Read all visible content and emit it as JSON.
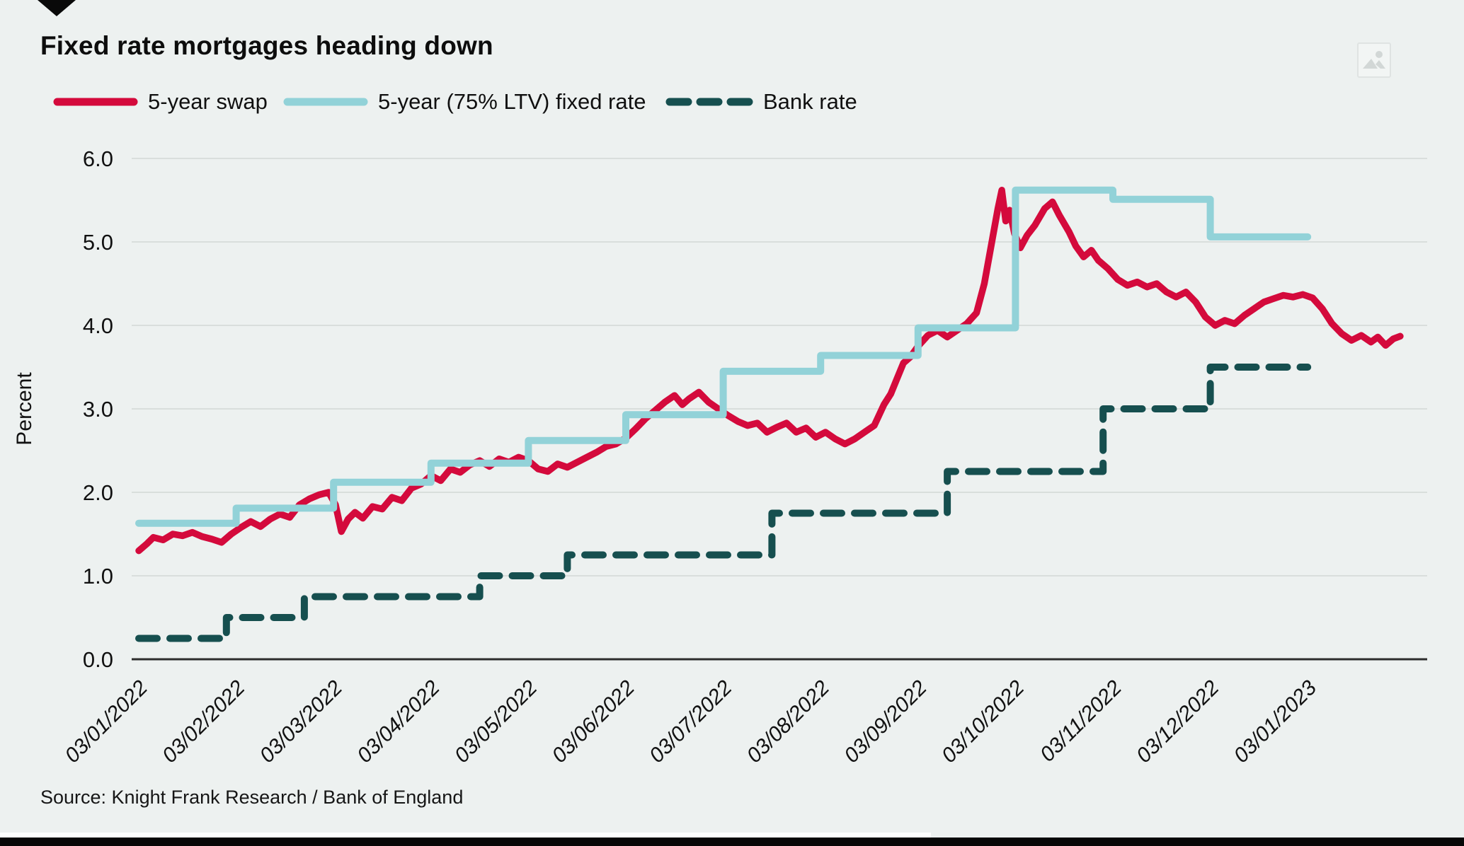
{
  "page": {
    "background": "#edf1f0"
  },
  "header": {
    "title": "Fixed rate mortgages heading down",
    "brand_icon": "down-triangle-icon",
    "corner_icon": "image-placeholder-icon"
  },
  "legend": [
    {
      "label": "5-year swap",
      "color": "#d40a3c",
      "style": "solid"
    },
    {
      "label": "5-year (75% LTV) fixed rate",
      "color": "#92d2d8",
      "style": "solid"
    },
    {
      "label": "Bank rate",
      "color": "#164f4f",
      "style": "dashed"
    }
  ],
  "chart_data": {
    "type": "line",
    "title": "Fixed rate mortgages heading down",
    "ylabel": "Percent",
    "ylim": [
      0.0,
      6.0
    ],
    "y_tick_labels": [
      "0.0",
      "1.0",
      "2.0",
      "3.0",
      "4.0",
      "5.0",
      "6.0"
    ],
    "x_tick_labels": [
      "03/01/2022",
      "03/02/2022",
      "03/03/2022",
      "03/04/2022",
      "03/05/2022",
      "03/06/2022",
      "03/07/2022",
      "03/08/2022",
      "03/09/2022",
      "03/10/2022",
      "03/11/2022",
      "03/12/2022",
      "03/01/2023"
    ],
    "grid": true,
    "legend_position": "top",
    "series": [
      {
        "name": "5-year swap",
        "color": "#d40a3c",
        "style": "solid",
        "unit": "percent",
        "x_unit": "months since 03/01/2022",
        "points": [
          [
            0,
            1.3
          ],
          [
            0.08,
            1.38
          ],
          [
            0.15,
            1.46
          ],
          [
            0.25,
            1.43
          ],
          [
            0.35,
            1.5
          ],
          [
            0.45,
            1.48
          ],
          [
            0.55,
            1.52
          ],
          [
            0.65,
            1.47
          ],
          [
            0.75,
            1.44
          ],
          [
            0.85,
            1.4
          ],
          [
            0.95,
            1.5
          ],
          [
            1.05,
            1.58
          ],
          [
            1.15,
            1.65
          ],
          [
            1.25,
            1.59
          ],
          [
            1.35,
            1.68
          ],
          [
            1.45,
            1.74
          ],
          [
            1.55,
            1.7
          ],
          [
            1.65,
            1.85
          ],
          [
            1.75,
            1.92
          ],
          [
            1.85,
            1.97
          ],
          [
            1.95,
            2.0
          ],
          [
            2.02,
            1.85
          ],
          [
            2.08,
            1.53
          ],
          [
            2.15,
            1.68
          ],
          [
            2.22,
            1.76
          ],
          [
            2.3,
            1.69
          ],
          [
            2.4,
            1.83
          ],
          [
            2.5,
            1.8
          ],
          [
            2.6,
            1.94
          ],
          [
            2.7,
            1.9
          ],
          [
            2.8,
            2.05
          ],
          [
            2.9,
            2.1
          ],
          [
            3.0,
            2.2
          ],
          [
            3.1,
            2.14
          ],
          [
            3.2,
            2.28
          ],
          [
            3.3,
            2.24
          ],
          [
            3.4,
            2.33
          ],
          [
            3.5,
            2.38
          ],
          [
            3.6,
            2.31
          ],
          [
            3.7,
            2.4
          ],
          [
            3.8,
            2.36
          ],
          [
            3.9,
            2.42
          ],
          [
            4.0,
            2.38
          ],
          [
            4.1,
            2.28
          ],
          [
            4.2,
            2.25
          ],
          [
            4.3,
            2.34
          ],
          [
            4.4,
            2.3
          ],
          [
            4.5,
            2.36
          ],
          [
            4.6,
            2.42
          ],
          [
            4.7,
            2.48
          ],
          [
            4.8,
            2.55
          ],
          [
            4.9,
            2.58
          ],
          [
            5.0,
            2.65
          ],
          [
            5.1,
            2.76
          ],
          [
            5.2,
            2.88
          ],
          [
            5.3,
            2.98
          ],
          [
            5.4,
            3.08
          ],
          [
            5.5,
            3.16
          ],
          [
            5.58,
            3.05
          ],
          [
            5.65,
            3.12
          ],
          [
            5.75,
            3.2
          ],
          [
            5.85,
            3.08
          ],
          [
            5.95,
            3.0
          ],
          [
            6.05,
            2.92
          ],
          [
            6.15,
            2.85
          ],
          [
            6.25,
            2.8
          ],
          [
            6.35,
            2.83
          ],
          [
            6.45,
            2.72
          ],
          [
            6.55,
            2.78
          ],
          [
            6.65,
            2.83
          ],
          [
            6.75,
            2.72
          ],
          [
            6.85,
            2.77
          ],
          [
            6.95,
            2.66
          ],
          [
            7.05,
            2.72
          ],
          [
            7.15,
            2.64
          ],
          [
            7.25,
            2.58
          ],
          [
            7.35,
            2.64
          ],
          [
            7.45,
            2.72
          ],
          [
            7.55,
            2.8
          ],
          [
            7.65,
            3.05
          ],
          [
            7.72,
            3.18
          ],
          [
            7.78,
            3.35
          ],
          [
            7.85,
            3.55
          ],
          [
            7.92,
            3.62
          ],
          [
            8.0,
            3.75
          ],
          [
            8.1,
            3.88
          ],
          [
            8.2,
            3.94
          ],
          [
            8.3,
            3.86
          ],
          [
            8.4,
            3.94
          ],
          [
            8.5,
            4.02
          ],
          [
            8.6,
            4.15
          ],
          [
            8.68,
            4.5
          ],
          [
            8.75,
            4.95
          ],
          [
            8.82,
            5.4
          ],
          [
            8.86,
            5.62
          ],
          [
            8.9,
            5.25
          ],
          [
            8.94,
            5.38
          ],
          [
            8.99,
            5.1
          ],
          [
            9.05,
            4.93
          ],
          [
            9.12,
            5.08
          ],
          [
            9.2,
            5.2
          ],
          [
            9.3,
            5.4
          ],
          [
            9.38,
            5.48
          ],
          [
            9.45,
            5.32
          ],
          [
            9.55,
            5.12
          ],
          [
            9.62,
            4.95
          ],
          [
            9.7,
            4.82
          ],
          [
            9.78,
            4.9
          ],
          [
            9.85,
            4.78
          ],
          [
            9.95,
            4.68
          ],
          [
            10.05,
            4.55
          ],
          [
            10.15,
            4.48
          ],
          [
            10.25,
            4.52
          ],
          [
            10.35,
            4.46
          ],
          [
            10.45,
            4.5
          ],
          [
            10.55,
            4.4
          ],
          [
            10.65,
            4.34
          ],
          [
            10.75,
            4.4
          ],
          [
            10.85,
            4.28
          ],
          [
            10.95,
            4.1
          ],
          [
            11.05,
            4.0
          ],
          [
            11.15,
            4.06
          ],
          [
            11.25,
            4.02
          ],
          [
            11.35,
            4.12
          ],
          [
            11.45,
            4.2
          ],
          [
            11.55,
            4.28
          ],
          [
            11.65,
            4.32
          ],
          [
            11.75,
            4.36
          ],
          [
            11.85,
            4.34
          ],
          [
            11.95,
            4.37
          ],
          [
            12.05,
            4.33
          ],
          [
            12.15,
            4.2
          ],
          [
            12.25,
            4.02
          ],
          [
            12.35,
            3.9
          ],
          [
            12.45,
            3.82
          ],
          [
            12.55,
            3.88
          ],
          [
            12.65,
            3.8
          ],
          [
            12.72,
            3.86
          ],
          [
            12.8,
            3.76
          ],
          [
            12.88,
            3.84
          ],
          [
            12.95,
            3.87
          ]
        ]
      },
      {
        "name": "5-year (75% LTV) fixed rate",
        "color": "#92d2d8",
        "style": "solid-step",
        "unit": "percent",
        "x_months": [
          0,
          1,
          2,
          3,
          4,
          5,
          6,
          7,
          8,
          9,
          10,
          11,
          12
        ],
        "values": [
          1.63,
          1.81,
          2.12,
          2.35,
          2.62,
          2.93,
          3.45,
          3.64,
          3.97,
          5.62,
          5.51,
          5.06,
          5.06
        ]
      },
      {
        "name": "Bank rate",
        "color": "#164f4f",
        "style": "dashed-step",
        "unit": "percent",
        "start_value": 0.25,
        "steps": [
          [
            0.9,
            0.5
          ],
          [
            1.7,
            0.75
          ],
          [
            3.5,
            1.0
          ],
          [
            4.4,
            1.25
          ],
          [
            6.5,
            1.75
          ],
          [
            8.3,
            2.25
          ],
          [
            9.9,
            3.0
          ],
          [
            11.0,
            3.5
          ]
        ],
        "end_month": 12.0
      }
    ]
  },
  "footer": {
    "source": "Source: Knight Frank Research / Bank of England"
  }
}
